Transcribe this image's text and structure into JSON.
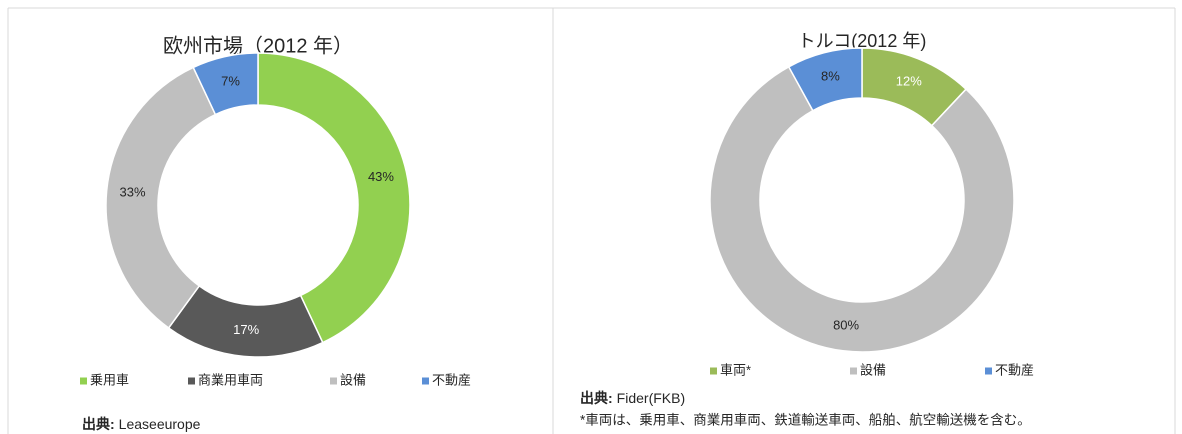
{
  "chart_data": [
    {
      "type": "donut",
      "title": "欧州市場（2012 年）",
      "categories": [
        "乗用車",
        "商業用車両",
        "設備",
        "不動産"
      ],
      "values": [
        43,
        17,
        33,
        7
      ],
      "value_labels": [
        "43%",
        "17%",
        "33%",
        "7%"
      ],
      "colors": [
        "#92d050",
        "#595959",
        "#bfbfbf",
        "#5b8fd6"
      ],
      "label_colors": [
        "#262626",
        "#ffffff",
        "#262626",
        "#262626"
      ],
      "source_label": "出典:",
      "source": "Leaseeurope"
    },
    {
      "type": "donut",
      "title": "トルコ(2012 年)",
      "categories": [
        "車両*",
        "設備",
        "不動産"
      ],
      "values": [
        12,
        80,
        8
      ],
      "value_labels": [
        "12%",
        "80%",
        "8%"
      ],
      "colors": [
        "#9bbb59",
        "#bfbfbf",
        "#5b8fd6"
      ],
      "label_colors": [
        "#ffffff",
        "#262626",
        "#262626"
      ],
      "source_label": "出典:",
      "source": "Fider(FKB)",
      "note": "*車両は、乗用車、商業用車両、鉄道輸送車両、船舶、航空輸送機を含む。"
    }
  ]
}
